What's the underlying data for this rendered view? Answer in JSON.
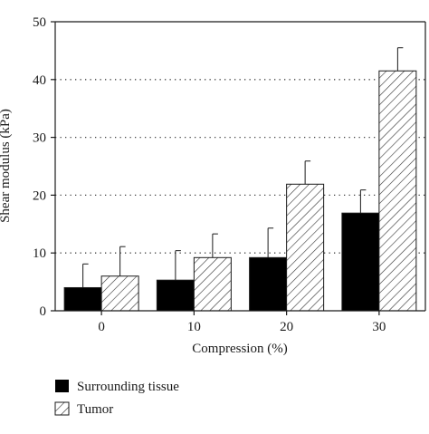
{
  "chart_data": {
    "type": "bar",
    "categories": [
      "0",
      "10",
      "20",
      "30"
    ],
    "series": [
      {
        "name": "Surrounding tissue",
        "fill": "solid-black",
        "values": [
          4.0,
          5.3,
          9.2,
          16.9
        ],
        "errors": [
          4.1,
          5.1,
          5.1,
          4.0
        ]
      },
      {
        "name": "Tumor",
        "fill": "diagonal-hatch",
        "values": [
          6.0,
          9.2,
          21.9,
          41.5
        ],
        "errors": [
          5.1,
          4.1,
          4.0,
          4.0
        ]
      }
    ],
    "xlabel": "Compression (%)",
    "ylabel": "Shear modulus (kPa)",
    "ylim": [
      0,
      50
    ],
    "yticks": [
      "0",
      "10",
      "20",
      "30",
      "40",
      "50"
    ],
    "gridlines": "dotted horizontal at 10, 20, 30, 40",
    "legend_position": "bottom-left"
  }
}
